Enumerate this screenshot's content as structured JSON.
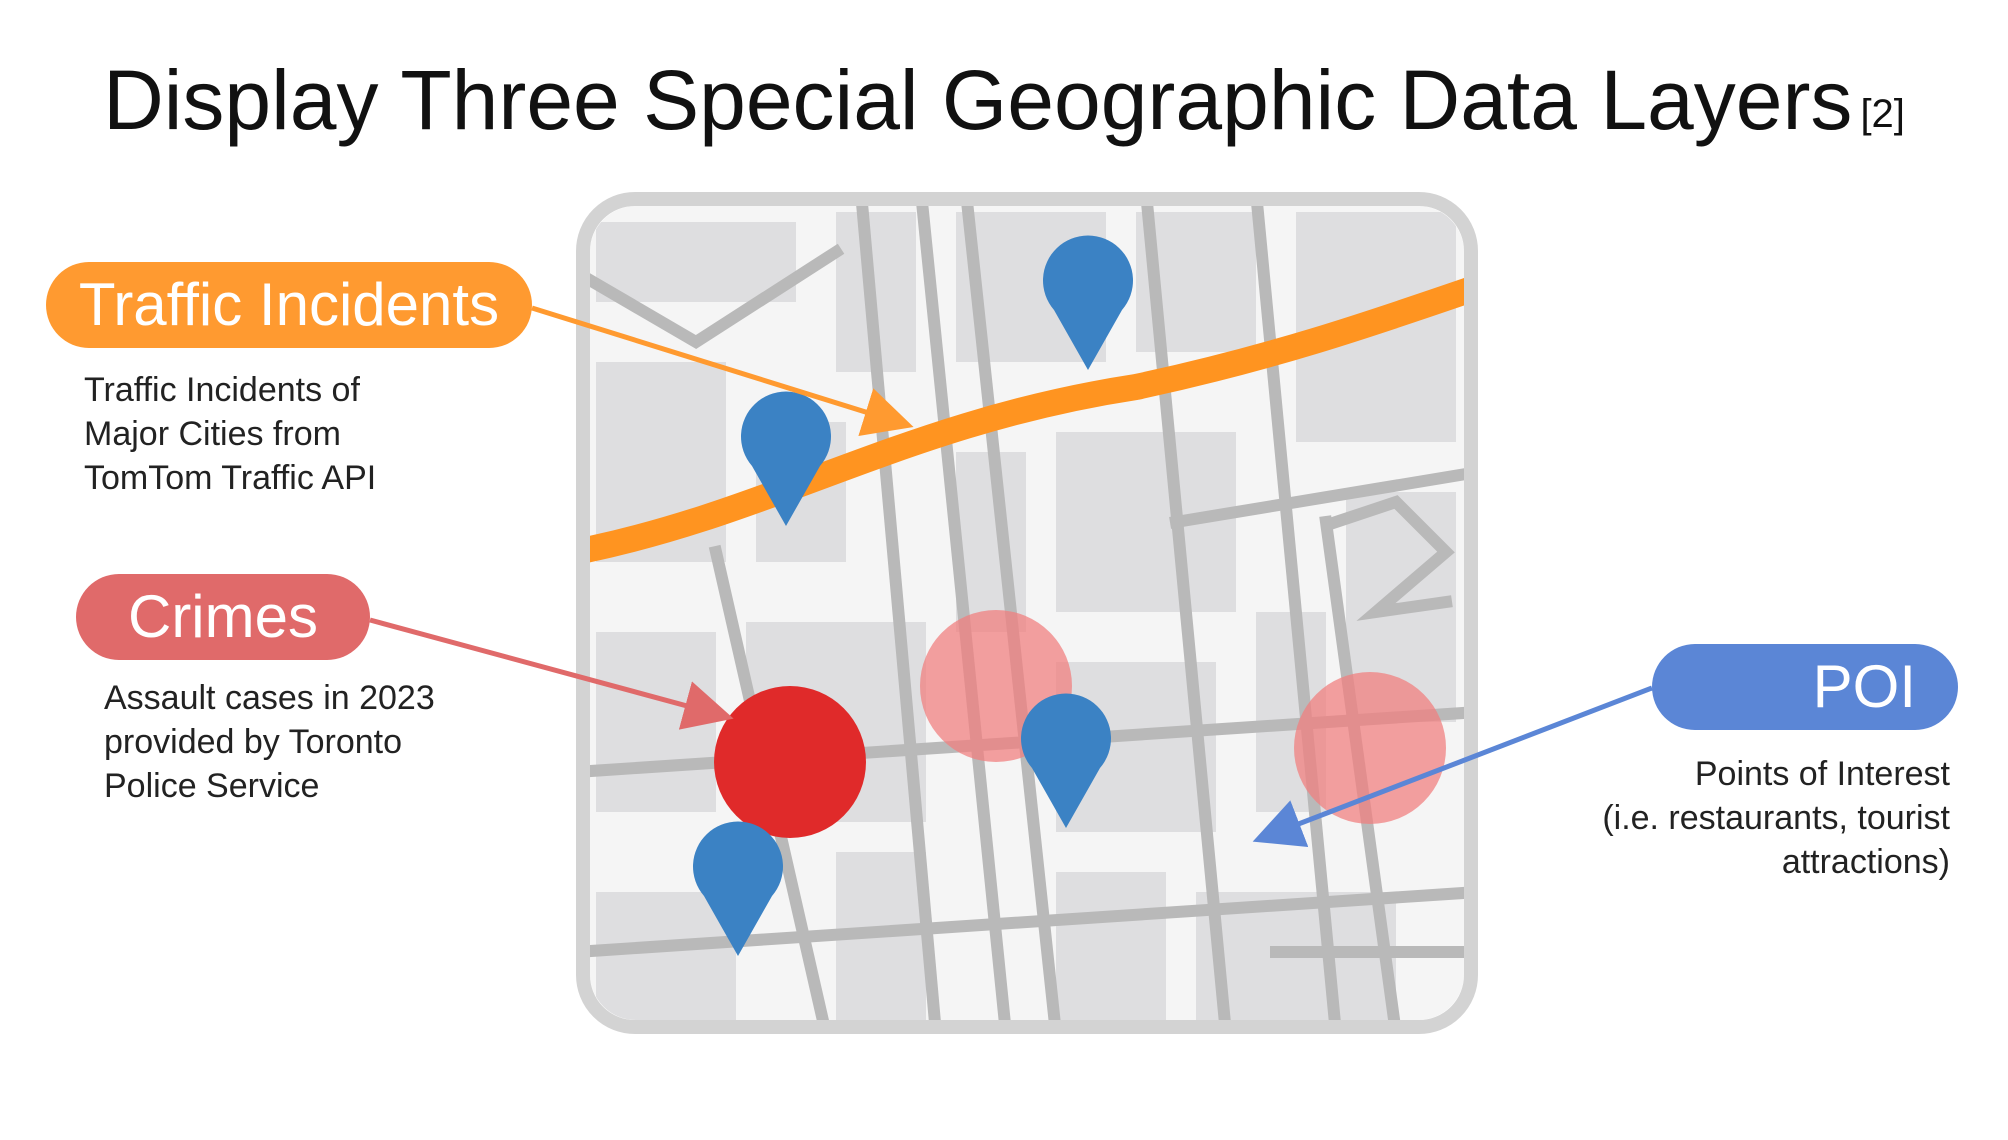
{
  "title": {
    "main": "Display Three Special Geographic Data Layers",
    "ref": "[2]"
  },
  "layers": {
    "traffic": {
      "label": "Traffic Incidents",
      "description": [
        "Traffic Incidents of",
        "Major Cities from",
        "TomTom Traffic API"
      ],
      "color": "#FF9A30"
    },
    "crimes": {
      "label": "Crimes",
      "description": [
        "Assault cases in 2023",
        "provided by Toronto",
        "Police Service"
      ],
      "color": "#E06A6A"
    },
    "poi": {
      "label": "POI",
      "description": [
        "Points of Interest",
        "(i.e. restaurants, tourist",
        "attractions)"
      ],
      "color": "#5B86D6"
    }
  },
  "map": {
    "frame_color": "#D3D3D3",
    "road_color": "#B9B9B9",
    "block_color": "#DEDEE0",
    "background_color": "#F5F5F5",
    "traffic_line_color": "#FF9420",
    "crime_solid_color": "#E02A2A",
    "crime_faded_color": "#F08080",
    "pin_color": "#3B82C4",
    "pin_icon": "map-pin-icon"
  }
}
